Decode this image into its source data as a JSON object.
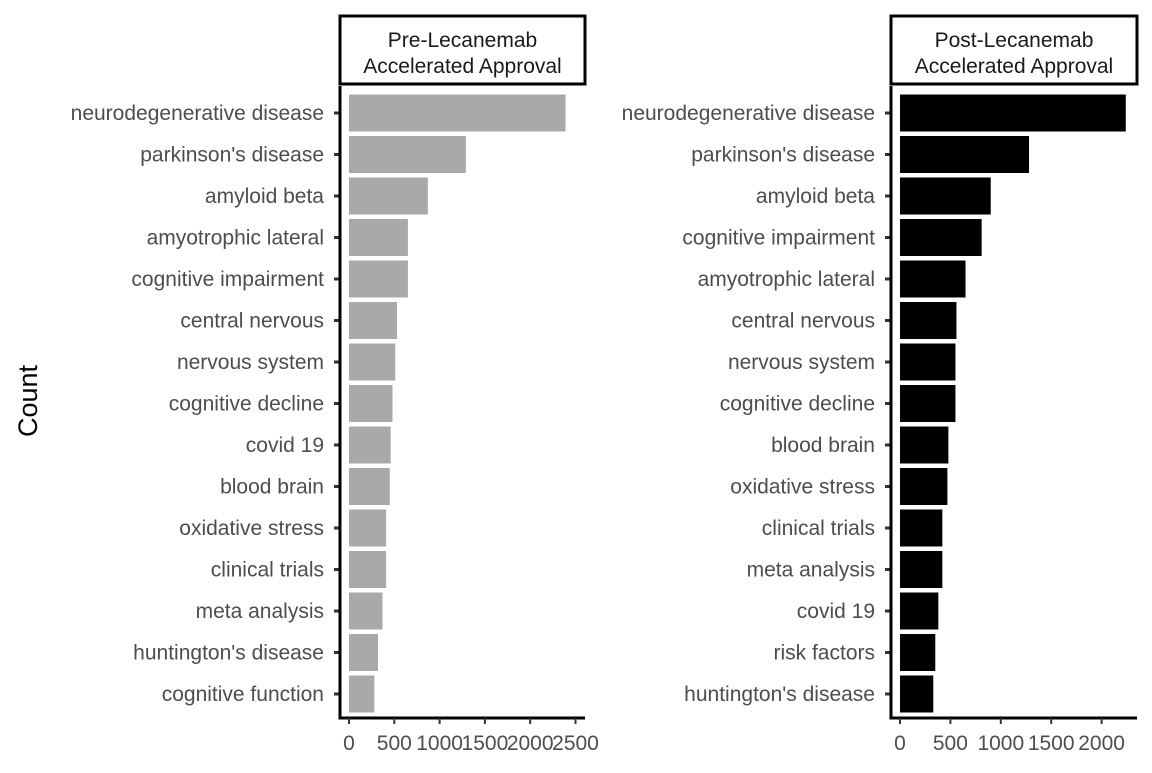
{
  "y_axis_label": "Count",
  "chart_data": [
    {
      "type": "bar",
      "orientation": "horizontal",
      "title": "Pre-Lecanemab\nAccelerated Approval",
      "bar_color": "#a9a9a9",
      "xlim": [
        0,
        2500
      ],
      "x_ticks": [
        0,
        500,
        1000,
        1500,
        2000,
        2500
      ],
      "categories": [
        "neurodegenerative disease",
        "parkinson's disease",
        "amyloid beta",
        "amyotrophic lateral",
        "cognitive impairment",
        "central nervous",
        "nervous system",
        "cognitive decline",
        "covid 19",
        "blood brain",
        "oxidative stress",
        "clinical trials",
        "meta analysis",
        "huntington's disease",
        "cognitive function"
      ],
      "values": [
        2390,
        1290,
        870,
        650,
        650,
        530,
        510,
        480,
        460,
        450,
        410,
        410,
        370,
        320,
        280
      ]
    },
    {
      "type": "bar",
      "orientation": "horizontal",
      "title": "Post-Lecanemab\nAccelerated Approval",
      "bar_color": "#000000",
      "xlim": [
        0,
        2300
      ],
      "x_ticks": [
        0,
        500,
        1000,
        1500,
        2000
      ],
      "categories": [
        "neurodegenerative disease",
        "parkinson's disease",
        "amyloid beta",
        "cognitive impairment",
        "amyotrophic lateral",
        "central nervous",
        "nervous system",
        "cognitive decline",
        "blood brain",
        "oxidative stress",
        "clinical trials",
        "meta analysis",
        "covid 19",
        "risk factors",
        "huntington's disease"
      ],
      "values": [
        2240,
        1280,
        900,
        810,
        650,
        560,
        550,
        550,
        480,
        470,
        420,
        420,
        380,
        350,
        330
      ]
    }
  ]
}
